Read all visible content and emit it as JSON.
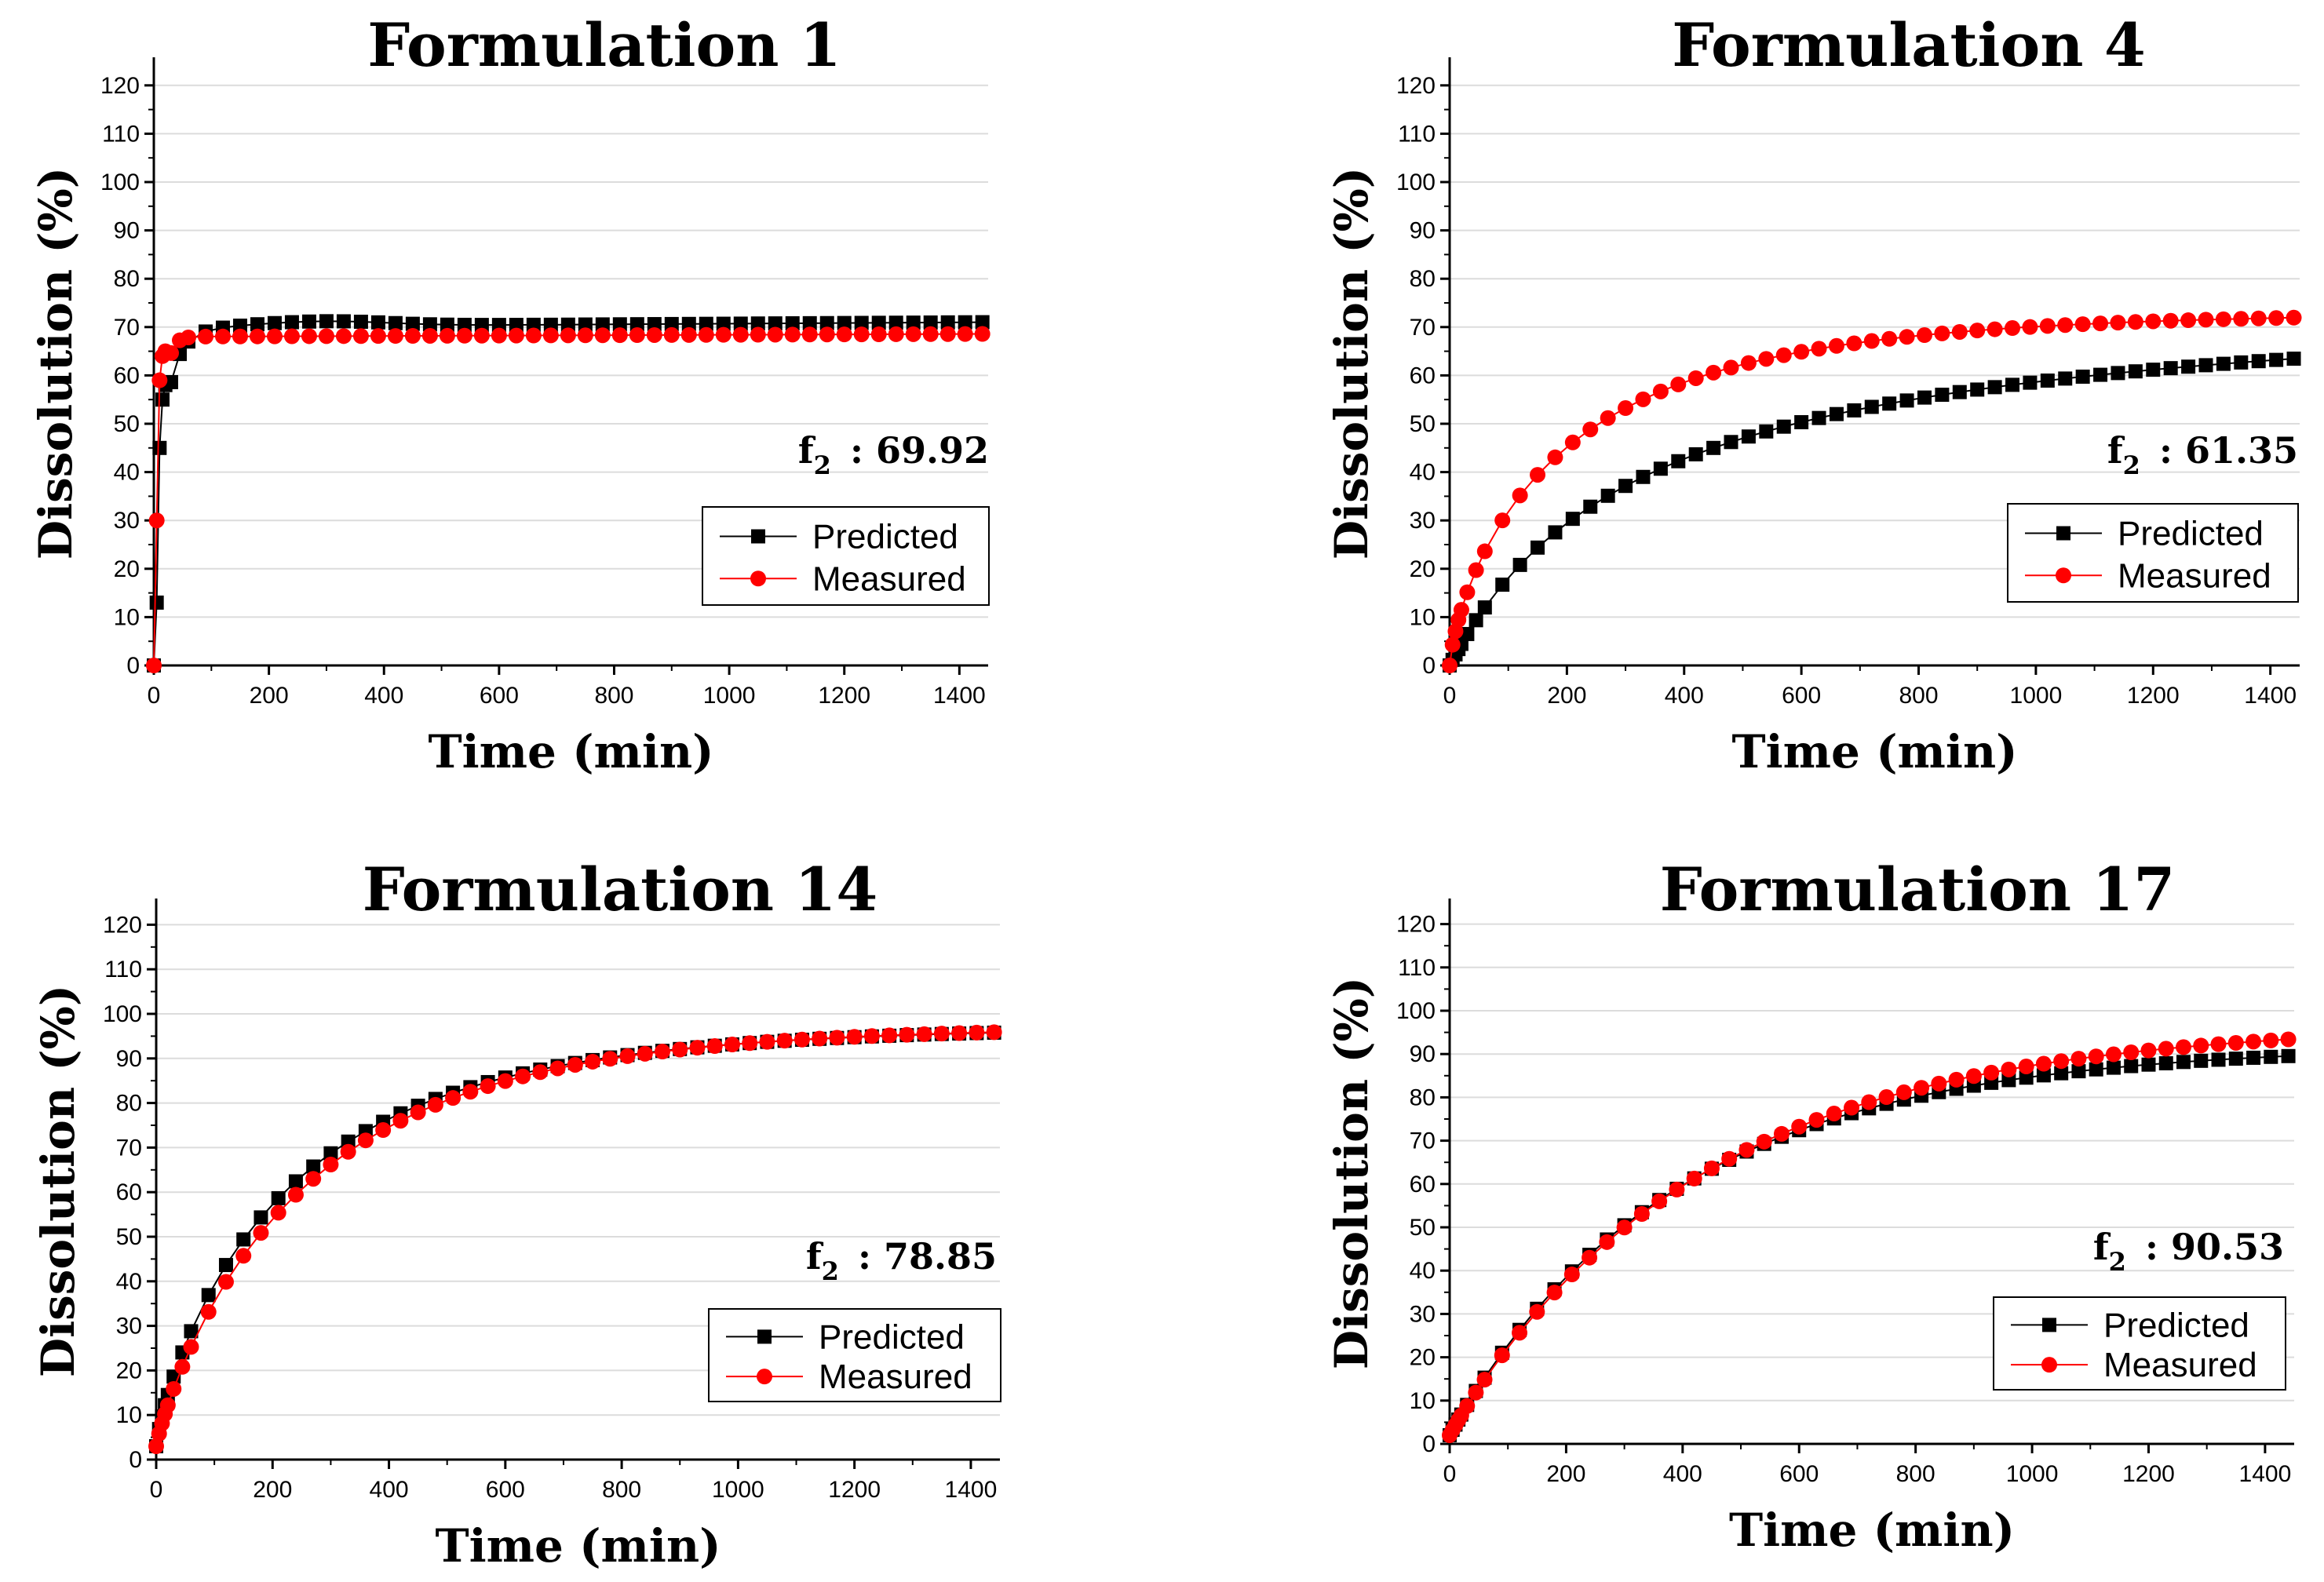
{
  "figure": {
    "caption": ""
  },
  "chart_data": [
    {
      "type": "scatter",
      "title": "Formulation 1",
      "xlabel": "Time (min)",
      "ylabel": "Dissolution (%)",
      "xlim": [
        0,
        1450
      ],
      "ylim": [
        0,
        125
      ],
      "xticks": [
        0,
        200,
        400,
        600,
        800,
        1000,
        1200,
        1400
      ],
      "yticks": [
        0,
        10,
        20,
        30,
        40,
        50,
        60,
        70,
        80,
        90,
        100,
        110,
        120
      ],
      "grid": true,
      "f2": {
        "label": "f",
        "sub": "2",
        "value": ": 69.92"
      },
      "legend_position": "lower-right",
      "series": [
        {
          "name": "Predicted",
          "color": "#000000",
          "marker": "square",
          "model": {
            "kind": "curve",
            "a": 70,
            "b": 0.05,
            "c": 0,
            "exp": [
              [
                1,
                0.08
              ],
              [
                0.3,
                0.03
              ]
            ],
            "bump": 1,
            "bumpAt": 300,
            "drift": 0.0007
          },
          "x": [],
          "y": []
        },
        {
          "name": "Measured",
          "color": "#ff0000",
          "marker": "circle",
          "model": {
            "kind": "curve",
            "a": 68,
            "b": 0.3,
            "c": 0,
            "exp": [
              [
                1,
                0.1
              ]
            ],
            "bump": 0,
            "bumpAt": 0,
            "drift": 0.0004
          },
          "x": [],
          "y": []
        }
      ]
    },
    {
      "type": "scatter",
      "title": "Formulation 4",
      "xlabel": "Time (min)",
      "ylabel": "Dissolution (%)",
      "xlim": [
        0,
        1450
      ],
      "ylim": [
        0,
        125
      ],
      "xticks": [
        0,
        200,
        400,
        600,
        800,
        1000,
        1200,
        1400
      ],
      "yticks": [
        0,
        10,
        20,
        30,
        40,
        50,
        60,
        70,
        80,
        90,
        100,
        110,
        120
      ],
      "grid": true,
      "f2": {
        "label": "f",
        "sub": "2",
        "value": ": 61.35"
      },
      "legend_position": "lower-right",
      "series": [
        {
          "name": "Predicted",
          "color": "#000000",
          "marker": "square",
          "model": {
            "kind": "hyper",
            "a": 78,
            "k": 330,
            "c": 0,
            "cap": 73.5
          },
          "x": [],
          "y": []
        },
        {
          "name": "Measured",
          "color": "#ff0000",
          "marker": "circle",
          "model": {
            "kind": "mix",
            "a": 73,
            "k": 210,
            "c": 0,
            "cap": 72
          },
          "x": [],
          "y": []
        }
      ]
    },
    {
      "type": "scatter",
      "title": "Formulation 14",
      "xlabel": "Time (min)",
      "ylabel": "Dissolution (%)",
      "xlim": [
        0,
        1450
      ],
      "ylim": [
        0,
        125
      ],
      "xticks": [
        0,
        200,
        400,
        600,
        800,
        1000,
        1200,
        1400
      ],
      "yticks": [
        0,
        10,
        20,
        30,
        40,
        50,
        60,
        70,
        80,
        90,
        100,
        110,
        120
      ],
      "grid": true,
      "f2": {
        "label": "f",
        "sub": "2",
        "value": ": 78.85"
      },
      "legend_position": "lower-right",
      "series": [
        {
          "name": "Predicted",
          "color": "#000000",
          "marker": "square",
          "model": {
            "kind": "expo",
            "a": 97,
            "k": 240,
            "c": 3,
            "p": 0.82
          },
          "x": [],
          "y": []
        },
        {
          "name": "Measured",
          "color": "#ff0000",
          "marker": "circle",
          "model": {
            "kind": "expo",
            "a": 97,
            "k": 265,
            "c": 3,
            "p": 0.88
          },
          "x": [],
          "y": []
        }
      ]
    },
    {
      "type": "scatter",
      "title": "Formulation 17",
      "xlabel": "Time (min)",
      "ylabel": "Dissolution (%)",
      "xlim": [
        0,
        1450
      ],
      "ylim": [
        0,
        125
      ],
      "xticks": [
        0,
        200,
        400,
        600,
        800,
        1000,
        1200,
        1400
      ],
      "yticks": [
        0,
        10,
        20,
        30,
        40,
        50,
        60,
        70,
        80,
        90,
        100,
        110,
        120
      ],
      "grid": true,
      "f2": {
        "label": "f",
        "sub": "2",
        "value": ": 90.53"
      },
      "legend_position": "lower-right",
      "series": [
        {
          "name": "Predicted",
          "color": "#000000",
          "marker": "square",
          "model": {
            "kind": "expo",
            "a": 92,
            "k": 390,
            "c": 2,
            "p": 0.98
          },
          "x": [],
          "y": []
        },
        {
          "name": "Measured",
          "color": "#ff0000",
          "marker": "circle",
          "model": {
            "kind": "expo",
            "a": 97,
            "k": 430,
            "c": 2,
            "p": 0.98
          },
          "x": [],
          "y": []
        }
      ]
    }
  ]
}
